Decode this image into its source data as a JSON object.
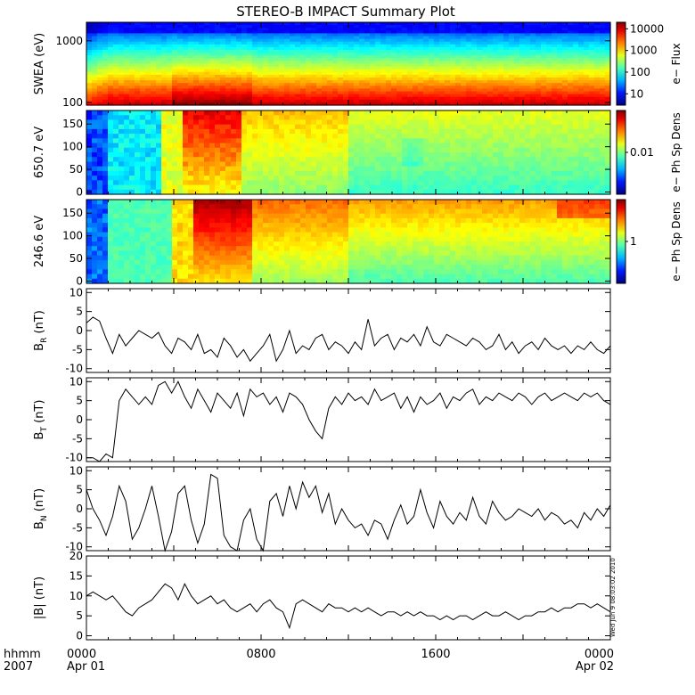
{
  "title": "STEREO-B IMPACT Summary Plot",
  "timestamp": "Wed Jun  9 08:03:02 2010",
  "time_axis": {
    "unit_label": "hhmm",
    "year_label": "2007",
    "ticks": [
      {
        "hour": 0,
        "label": "0000",
        "sublabel": "Apr 01"
      },
      {
        "hour": 8,
        "label": "0800",
        "sublabel": ""
      },
      {
        "hour": 16,
        "label": "1600",
        "sublabel": ""
      },
      {
        "hour": 24,
        "label": "0000",
        "sublabel": "Apr 02"
      }
    ]
  },
  "chart_data": [
    {
      "type": "heatmap",
      "ylabel": "SWEA (eV)",
      "yscale": "log",
      "ylim": [
        90,
        2000
      ],
      "yticks": [
        100,
        1000
      ],
      "ytick_labels": [
        "100",
        "1000"
      ],
      "colorbar": {
        "label": "e− Flux",
        "scale": "log",
        "range": [
          3,
          20000
        ],
        "ticks": [
          10,
          100,
          1000,
          10000
        ],
        "tick_labels": [
          "10",
          "100",
          "1000",
          "10000"
        ]
      },
      "description_values": {
        "peak_energy_low_flux_high": true
      }
    },
    {
      "type": "heatmap",
      "ylabel": "650.7 eV",
      "ylim": [
        -5,
        180
      ],
      "yticks": [
        0,
        50,
        100,
        150
      ],
      "colorbar": {
        "label": "e− Ph Sp Dens",
        "scale": "log",
        "range": [
          0.002,
          0.05
        ],
        "ticks": [
          0.01
        ],
        "tick_labels": [
          "0.01"
        ]
      }
    },
    {
      "type": "heatmap",
      "ylabel": "246.6 eV",
      "ylim": [
        -5,
        180
      ],
      "yticks": [
        0,
        50,
        100,
        150
      ],
      "colorbar": {
        "label": "e− Ph Sp Dens",
        "scale": "log",
        "range": [
          0.2,
          5
        ],
        "ticks": [
          1
        ],
        "tick_labels": [
          "1"
        ]
      }
    },
    {
      "type": "line",
      "ylabel": "B",
      "ysub": "R",
      "yunit": " (nT)",
      "ylim": [
        -11,
        11
      ],
      "yticks": [
        -10,
        -5,
        0,
        5,
        10
      ],
      "x": [
        0,
        0.3,
        0.6,
        0.9,
        1.2,
        1.5,
        1.8,
        2.1,
        2.4,
        2.7,
        3,
        3.3,
        3.6,
        3.9,
        4.2,
        4.5,
        4.8,
        5.1,
        5.4,
        5.7,
        6,
        6.3,
        6.6,
        6.9,
        7.2,
        7.5,
        7.8,
        8.1,
        8.4,
        8.7,
        9,
        9.3,
        9.6,
        9.9,
        10.2,
        10.5,
        10.8,
        11.1,
        11.4,
        11.7,
        12,
        12.3,
        12.6,
        12.9,
        13.2,
        13.5,
        13.8,
        14.1,
        14.4,
        14.7,
        15,
        15.3,
        15.6,
        15.9,
        16.2,
        16.5,
        16.8,
        17.1,
        17.4,
        17.7,
        18,
        18.3,
        18.6,
        18.9,
        19.2,
        19.5,
        19.8,
        20.1,
        20.4,
        20.7,
        21,
        21.3,
        21.6,
        21.9,
        22.2,
        22.5,
        22.8,
        23.1,
        23.4,
        23.7,
        24
      ],
      "y": [
        2,
        3.5,
        2.5,
        -2,
        -6,
        -1,
        -4,
        -2,
        0,
        -1,
        -2,
        -0.5,
        -4,
        -6,
        -2,
        -3,
        -5,
        -1,
        -6,
        -5,
        -7,
        -2,
        -4,
        -7,
        -5,
        -8,
        -6,
        -4,
        -1,
        -8,
        -5,
        0,
        -6,
        -4,
        -5,
        -2,
        -1,
        -5,
        -3,
        -4,
        -6,
        -3,
        -5,
        3,
        -4,
        -2,
        -1,
        -5,
        -2,
        -3,
        -1,
        -4,
        1,
        -3,
        -4,
        -1,
        -2,
        -3,
        -4,
        -2,
        -3,
        -5,
        -4,
        -1,
        -5,
        -3,
        -6,
        -4,
        -3,
        -5,
        -2,
        -4,
        -5,
        -4,
        -6,
        -4,
        -5,
        -3,
        -5,
        -6,
        -4
      ]
    },
    {
      "type": "line",
      "ylabel": "B",
      "ysub": "T",
      "yunit": " (nT)",
      "ylim": [
        -11,
        11
      ],
      "yticks": [
        -10,
        -5,
        0,
        5,
        10
      ],
      "x": [
        0,
        0.3,
        0.6,
        0.9,
        1.2,
        1.5,
        1.8,
        2.1,
        2.4,
        2.7,
        3,
        3.3,
        3.6,
        3.9,
        4.2,
        4.5,
        4.8,
        5.1,
        5.4,
        5.7,
        6,
        6.3,
        6.6,
        6.9,
        7.2,
        7.5,
        7.8,
        8.1,
        8.4,
        8.7,
        9,
        9.3,
        9.6,
        9.9,
        10.2,
        10.5,
        10.8,
        11.1,
        11.4,
        11.7,
        12,
        12.3,
        12.6,
        12.9,
        13.2,
        13.5,
        13.8,
        14.1,
        14.4,
        14.7,
        15,
        15.3,
        15.6,
        15.9,
        16.2,
        16.5,
        16.8,
        17.1,
        17.4,
        17.7,
        18,
        18.3,
        18.6,
        18.9,
        19.2,
        19.5,
        19.8,
        20.1,
        20.4,
        20.7,
        21,
        21.3,
        21.6,
        21.9,
        22.2,
        22.5,
        22.8,
        23.1,
        23.4,
        23.7,
        24
      ],
      "y": [
        -10,
        -10,
        -11,
        -9,
        -10,
        5,
        8,
        6,
        4,
        6,
        4,
        9,
        10,
        7,
        10,
        6,
        3,
        8,
        5,
        2,
        7,
        5,
        3,
        7,
        1,
        8,
        6,
        7,
        4,
        6,
        2,
        7,
        6,
        4,
        0,
        -3,
        -5,
        3,
        6,
        4,
        7,
        5,
        6,
        4,
        8,
        5,
        6,
        7,
        3,
        6,
        2,
        6,
        4,
        5,
        7,
        3,
        6,
        5,
        7,
        8,
        4,
        6,
        5,
        7,
        6,
        5,
        7,
        6,
        4,
        6,
        7,
        5,
        6,
        7,
        6,
        5,
        7,
        6,
        7,
        5,
        4
      ]
    },
    {
      "type": "line",
      "ylabel": "B",
      "ysub": "N",
      "yunit": " (nT)",
      "ylim": [
        -11,
        11
      ],
      "yticks": [
        -10,
        -5,
        0,
        5,
        10
      ],
      "x": [
        0,
        0.3,
        0.6,
        0.9,
        1.2,
        1.5,
        1.8,
        2.1,
        2.4,
        2.7,
        3,
        3.3,
        3.6,
        3.9,
        4.2,
        4.5,
        4.8,
        5.1,
        5.4,
        5.7,
        6,
        6.3,
        6.6,
        6.9,
        7.2,
        7.5,
        7.8,
        8.1,
        8.4,
        8.7,
        9,
        9.3,
        9.6,
        9.9,
        10.2,
        10.5,
        10.8,
        11.1,
        11.4,
        11.7,
        12,
        12.3,
        12.6,
        12.9,
        13.2,
        13.5,
        13.8,
        14.1,
        14.4,
        14.7,
        15,
        15.3,
        15.6,
        15.9,
        16.2,
        16.5,
        16.8,
        17.1,
        17.4,
        17.7,
        18,
        18.3,
        18.6,
        18.9,
        19.2,
        19.5,
        19.8,
        20.1,
        20.4,
        20.7,
        21,
        21.3,
        21.6,
        21.9,
        22.2,
        22.5,
        22.8,
        23.1,
        23.4,
        23.7,
        24
      ],
      "y": [
        5,
        0,
        -3,
        -7,
        -2,
        6,
        2,
        -8,
        -5,
        0,
        6,
        -2,
        -11,
        -6,
        4,
        6,
        -3,
        -9,
        -4,
        9,
        8,
        -7,
        -10,
        -11,
        -3,
        0,
        -8,
        -11,
        2,
        4,
        -2,
        6,
        0,
        7,
        3,
        6,
        -1,
        4,
        -4,
        0,
        -3,
        -5,
        -4,
        -7,
        -3,
        -4,
        -8,
        -3,
        1,
        -4,
        -2,
        5,
        -1,
        -5,
        2,
        -2,
        -4,
        -1,
        -3,
        3,
        -2,
        -4,
        2,
        -1,
        -3,
        -2,
        0,
        -1,
        -2,
        0,
        -3,
        -1,
        -2,
        -4,
        -3,
        -5,
        -1,
        -3,
        0,
        -2,
        1
      ]
    },
    {
      "type": "line",
      "ylabel": "|B|",
      "yunit": " (nT)",
      "ylim": [
        -1,
        20
      ],
      "yticks": [
        0,
        5,
        10,
        15,
        20
      ],
      "x": [
        0,
        0.3,
        0.6,
        0.9,
        1.2,
        1.5,
        1.8,
        2.1,
        2.4,
        2.7,
        3,
        3.3,
        3.6,
        3.9,
        4.2,
        4.5,
        4.8,
        5.1,
        5.4,
        5.7,
        6,
        6.3,
        6.6,
        6.9,
        7.2,
        7.5,
        7.8,
        8.1,
        8.4,
        8.7,
        9,
        9.3,
        9.6,
        9.9,
        10.2,
        10.5,
        10.8,
        11.1,
        11.4,
        11.7,
        12,
        12.3,
        12.6,
        12.9,
        13.2,
        13.5,
        13.8,
        14.1,
        14.4,
        14.7,
        15,
        15.3,
        15.6,
        15.9,
        16.2,
        16.5,
        16.8,
        17.1,
        17.4,
        17.7,
        18,
        18.3,
        18.6,
        18.9,
        19.2,
        19.5,
        19.8,
        20.1,
        20.4,
        20.7,
        21,
        21.3,
        21.6,
        21.9,
        22.2,
        22.5,
        22.8,
        23.1,
        23.4,
        23.7,
        24
      ],
      "y": [
        10,
        11,
        10,
        9,
        10,
        8,
        6,
        5,
        7,
        8,
        9,
        11,
        13,
        12,
        9,
        13,
        10,
        8,
        9,
        10,
        8,
        9,
        7,
        6,
        7,
        8,
        6,
        8,
        9,
        7,
        6,
        2,
        8,
        9,
        8,
        7,
        6,
        8,
        7,
        7,
        6,
        7,
        6,
        7,
        6,
        5,
        6,
        6,
        5,
        6,
        5,
        6,
        5,
        5,
        4,
        5,
        4,
        5,
        5,
        4,
        5,
        6,
        5,
        5,
        6,
        5,
        4,
        5,
        5,
        6,
        6,
        7,
        6,
        7,
        7,
        8,
        8,
        7,
        8,
        7,
        6
      ]
    }
  ]
}
